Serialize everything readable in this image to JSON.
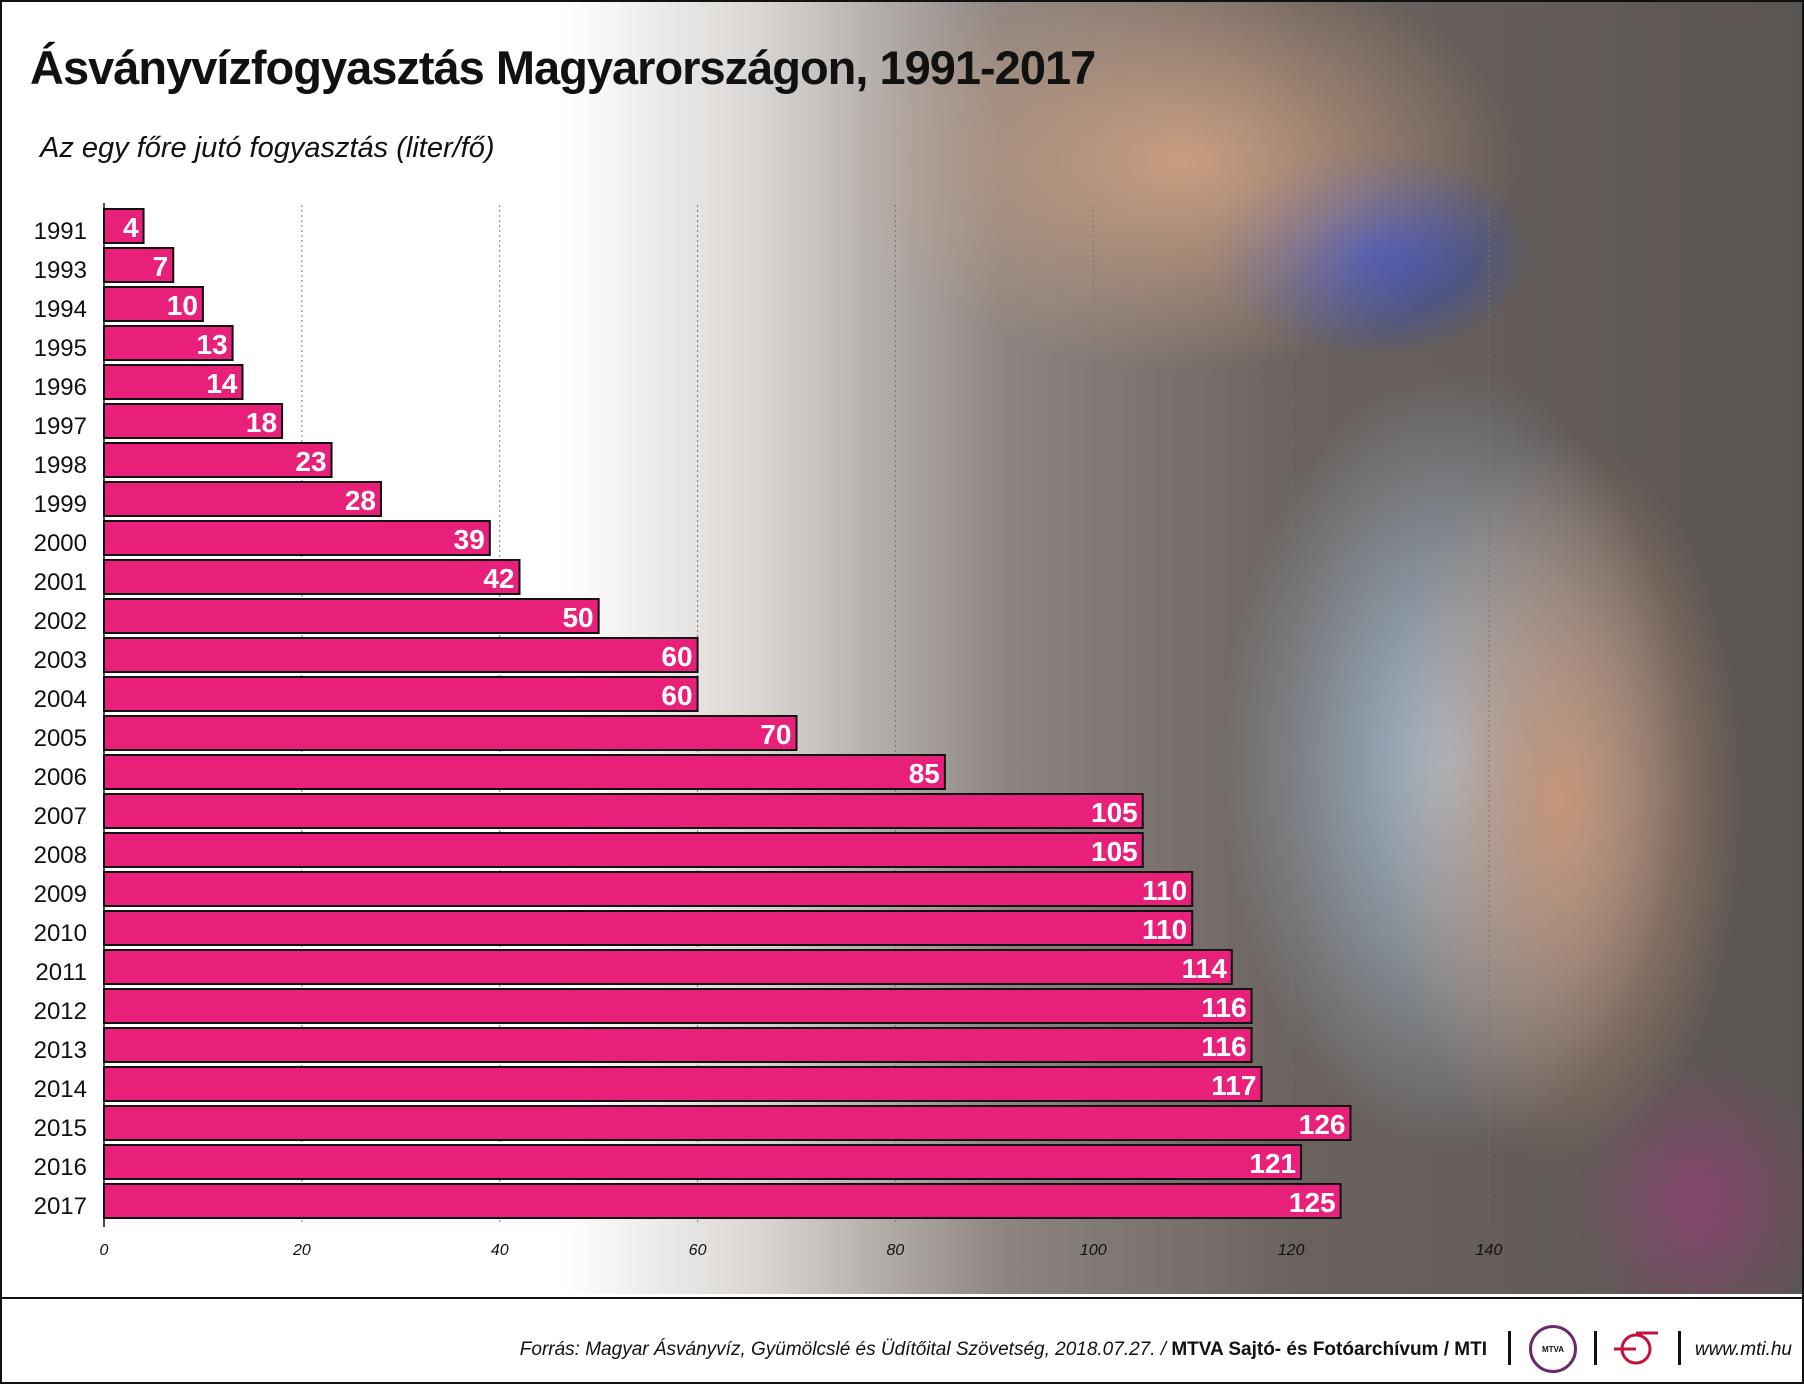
{
  "title": "Ásványvízfogyasztás Magyarországon, 1991-2017",
  "subtitle": "Az egy főre jutó fogyasztás (liter/fő)",
  "colors": {
    "bar": "#e8207a",
    "bar_border": "#111111",
    "label": "#ffffff"
  },
  "chart_data": {
    "type": "bar",
    "orientation": "horizontal",
    "categories": [
      "1991",
      "1993",
      "1994",
      "1995",
      "1996",
      "1997",
      "1998",
      "1999",
      "2000",
      "2001",
      "2002",
      "2003",
      "2004",
      "2005",
      "2006",
      "2007",
      "2008",
      "2009",
      "2010",
      "2011",
      "2012",
      "2013",
      "2014",
      "2015",
      "2016",
      "2017"
    ],
    "values": [
      4,
      7,
      10,
      13,
      14,
      18,
      23,
      28,
      39,
      42,
      50,
      60,
      60,
      70,
      85,
      105,
      105,
      110,
      110,
      114,
      116,
      116,
      117,
      126,
      121,
      125
    ],
    "xlim": [
      0,
      140
    ],
    "x_ticks": [
      "0",
      "20",
      "40",
      "60",
      "80",
      "100",
      "120",
      "140"
    ],
    "grid": "vertical dotted",
    "data_labels": true
  },
  "footer": {
    "source_italic": "Forrás: Magyar Ásványvíz, Gyümölcslé és Üdítőital Szövetség, 2018.07.27. / ",
    "source_bold": "MTVA Sajtó- és Fotóarchívum / MTI",
    "logo_mtva": "MTVA",
    "url": "www.mti.hu"
  }
}
